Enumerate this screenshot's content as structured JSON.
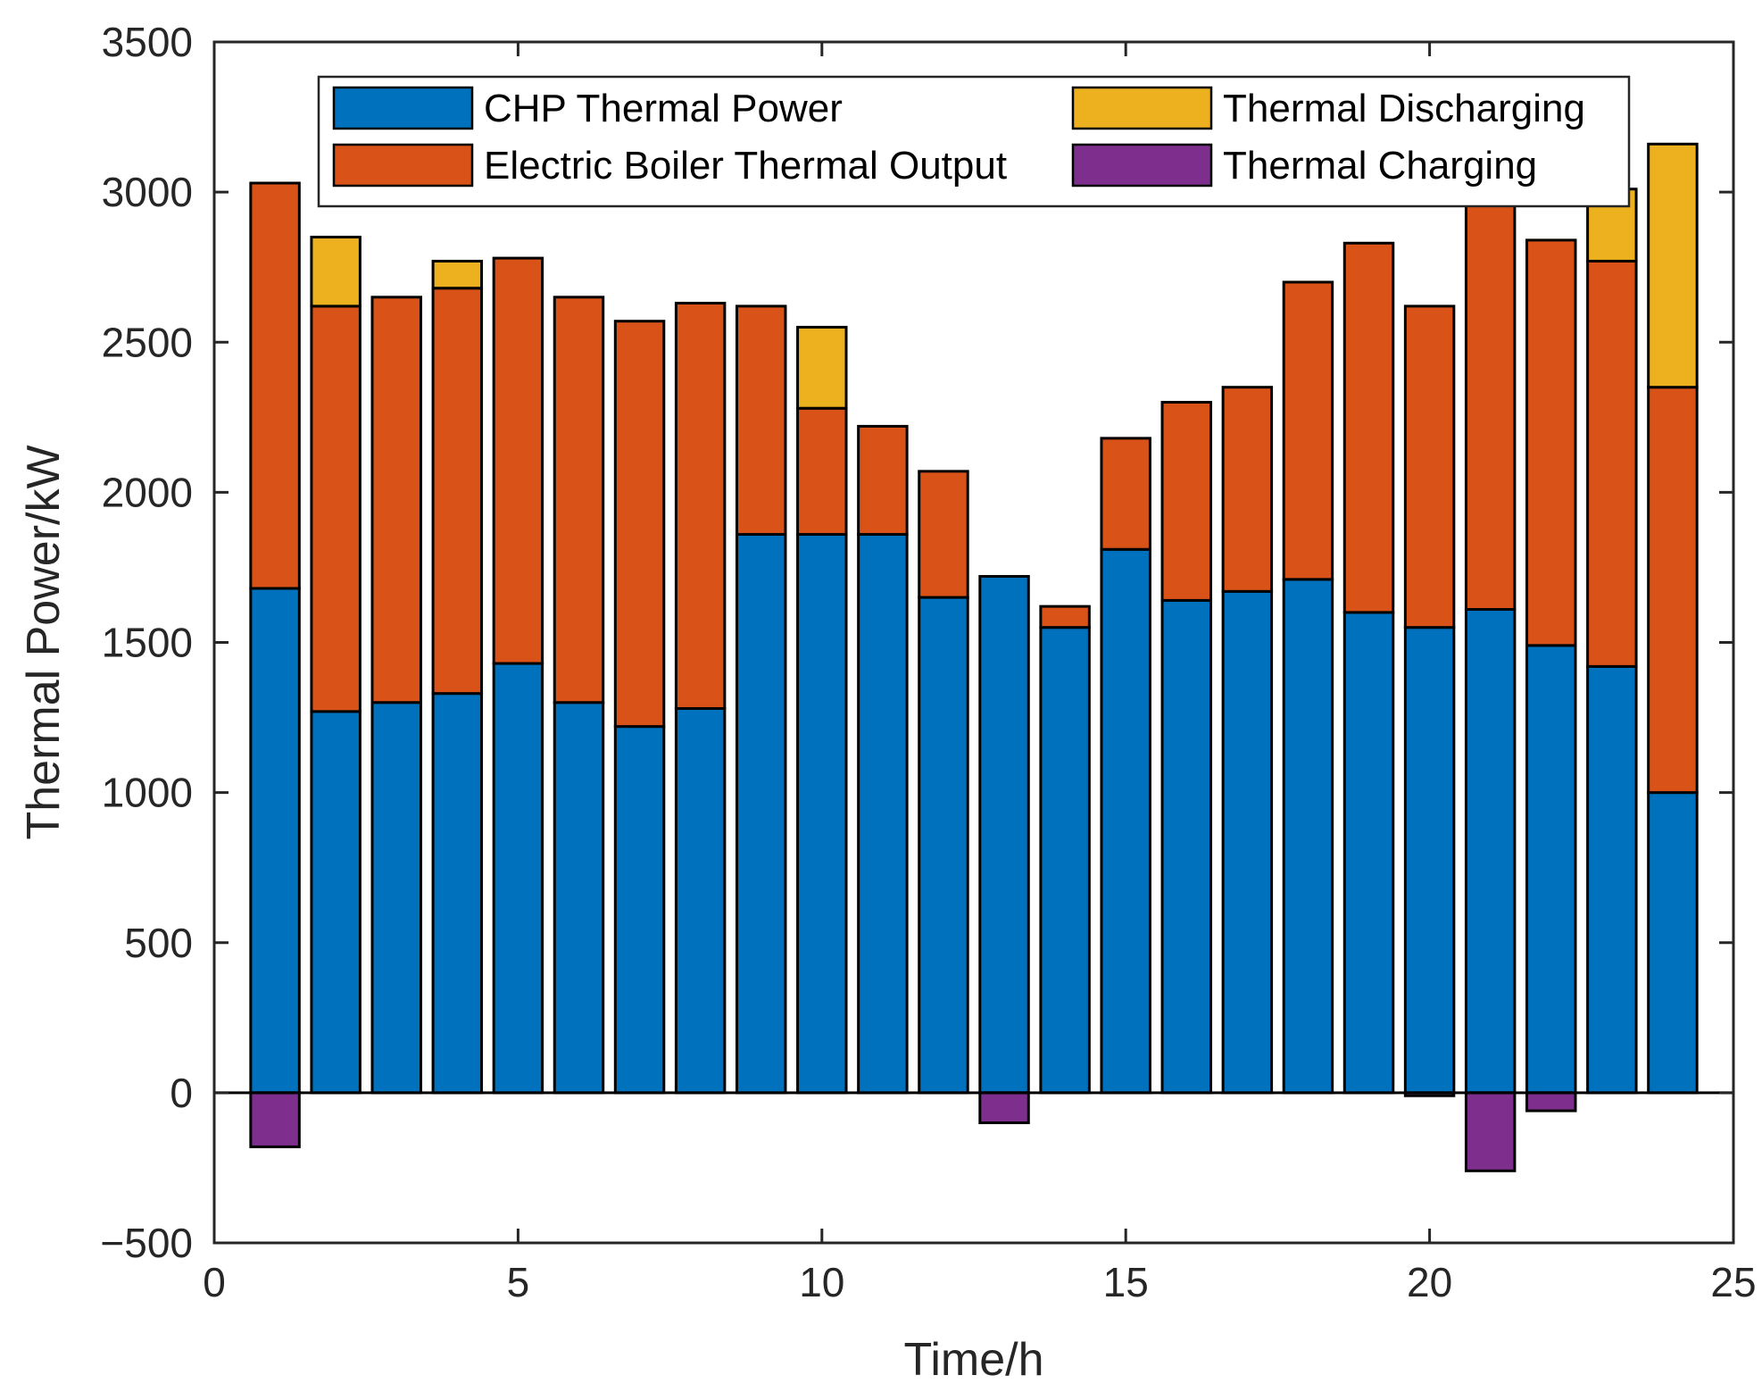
{
  "chart_data": {
    "type": "bar",
    "stacked": true,
    "title": "",
    "xlabel": "Time/h",
    "ylabel": "Thermal Power/kW",
    "xlim": [
      0,
      25
    ],
    "ylim": [
      -500,
      3500
    ],
    "xticks": [
      0,
      5,
      10,
      15,
      20,
      25
    ],
    "yticks": [
      -500,
      0,
      500,
      1000,
      1500,
      2000,
      2500,
      3000,
      3500
    ],
    "x": [
      1,
      2,
      3,
      4,
      5,
      6,
      7,
      8,
      9,
      10,
      11,
      12,
      13,
      14,
      15,
      16,
      17,
      18,
      19,
      20,
      21,
      22,
      23,
      24
    ],
    "legend_position": "top",
    "series": [
      {
        "name": "CHP Thermal Power",
        "color": "#0072BD",
        "values": [
          1680,
          1270,
          1300,
          1330,
          1430,
          1300,
          1220,
          1280,
          1860,
          1860,
          1860,
          1650,
          1720,
          1550,
          1810,
          1640,
          1670,
          1710,
          1600,
          1550,
          1610,
          1490,
          1420,
          1000
        ]
      },
      {
        "name": "Electric Boiler Thermal Output",
        "color": "#D95319",
        "values": [
          1350,
          1350,
          1350,
          1350,
          1350,
          1350,
          1350,
          1350,
          760,
          420,
          360,
          420,
          0,
          70,
          370,
          660,
          680,
          990,
          1230,
          1070,
          1350,
          1350,
          1350,
          1350
        ]
      },
      {
        "name": "Thermal Discharging",
        "color": "#EDB120",
        "values": [
          0,
          230,
          0,
          90,
          0,
          0,
          0,
          0,
          0,
          270,
          0,
          0,
          0,
          0,
          0,
          0,
          0,
          0,
          0,
          0,
          0,
          0,
          240,
          810
        ]
      },
      {
        "name": "Thermal Charging",
        "color": "#7E2F8E",
        "values": [
          -180,
          0,
          0,
          0,
          0,
          0,
          0,
          0,
          0,
          0,
          0,
          0,
          -100,
          0,
          0,
          0,
          0,
          0,
          0,
          -10,
          -260,
          -60,
          0,
          0
        ]
      }
    ]
  }
}
